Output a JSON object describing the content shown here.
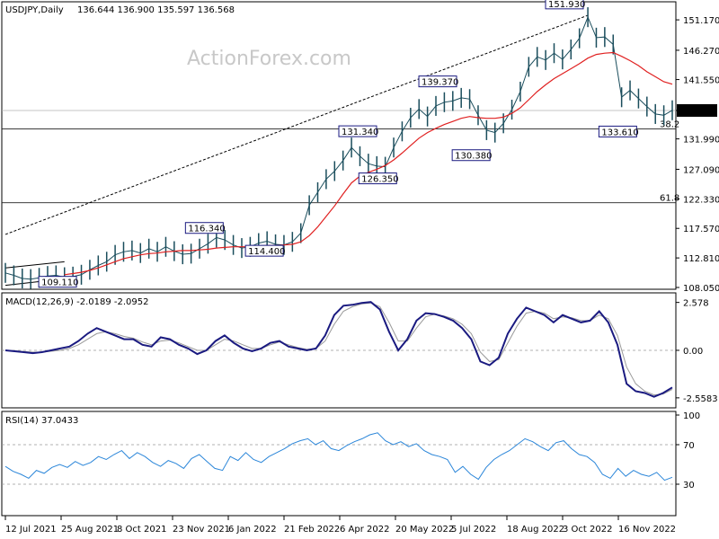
{
  "chart_data": {
    "type": "line",
    "instrument": "USDJPY,Daily",
    "ohlc": "136.644 136.900 135.597 136.568",
    "watermark": "ActionForex.com",
    "x_tick_labels": [
      "12 Jul 2021",
      "25 Aug 2021",
      "8 Oct 2021",
      "23 Nov 2021",
      "6 Jan 2022",
      "21 Feb 2022",
      "6 Apr 2022",
      "20 May 2022",
      "5 Jul 2022",
      "18 Aug 2022",
      "3 Oct 2022",
      "16 Nov 2022"
    ],
    "price_panel": {
      "y_ticks": [
        "151.170",
        "146.270",
        "141.550",
        "136.568",
        "131.990",
        "127.090",
        "122.330",
        "117.570",
        "112.810",
        "108.050"
      ],
      "ylim": [
        108.05,
        153.5
      ],
      "last_price": "136.568",
      "horizontal_levels": [
        136.568,
        133.61,
        121.7
      ],
      "fib_labels": [
        {
          "text": "38.2",
          "price": 133.61
        },
        {
          "text": "61.8",
          "price": 121.7
        }
      ],
      "annotations": [
        {
          "text": "109.110",
          "price": 109.11
        },
        {
          "text": "116.340",
          "price": 116.34
        },
        {
          "text": "114.400",
          "price": 114.4
        },
        {
          "text": "131.340",
          "price": 131.34
        },
        {
          "text": "126.350",
          "price": 126.35
        },
        {
          "text": "139.370",
          "price": 139.37
        },
        {
          "text": "130.380",
          "price": 130.38
        },
        {
          "text": "151.930",
          "price": 151.93
        },
        {
          "text": "133.610",
          "price": 133.61
        }
      ],
      "series": [
        {
          "name": "price",
          "color": "#1a4d5c",
          "values": [
            110.4,
            110.0,
            109.5,
            109.4,
            109.6,
            109.9,
            110.0,
            109.7,
            109.8,
            110.1,
            110.9,
            111.6,
            112.2,
            113.3,
            113.8,
            114.0,
            113.6,
            114.3,
            113.8,
            114.6,
            113.9,
            113.4,
            113.5,
            114.3,
            115.1,
            116.1,
            115.7,
            114.9,
            114.4,
            114.6,
            115.2,
            115.5,
            115.0,
            114.9,
            115.4,
            116.8,
            121.3,
            123.4,
            125.5,
            126.8,
            128.5,
            130.6,
            129.2,
            128.0,
            127.6,
            127.5,
            130.6,
            133.2,
            135.4,
            136.8,
            135.6,
            137.3,
            137.9,
            138.1,
            138.6,
            138.4,
            135.8,
            133.4,
            133.0,
            134.5,
            136.7,
            139.6,
            143.6,
            145.2,
            144.7,
            145.8,
            144.8,
            146.4,
            148.2,
            151.6,
            148.3,
            148.4,
            147.2,
            138.7,
            139.8,
            138.5,
            137.2,
            136.0,
            135.8,
            136.6
          ]
        },
        {
          "name": "sma",
          "color": "#e02020",
          "values": [
            null,
            null,
            null,
            null,
            null,
            null,
            null,
            110.1,
            110.3,
            110.5,
            110.8,
            111.2,
            111.7,
            112.2,
            112.7,
            113.0,
            113.3,
            113.5,
            113.6,
            113.8,
            113.9,
            114.0,
            114.0,
            114.1,
            114.2,
            114.4,
            114.5,
            114.6,
            114.6,
            114.6,
            114.7,
            114.8,
            114.8,
            114.9,
            115.0,
            115.4,
            116.4,
            117.8,
            119.5,
            121.2,
            123.1,
            124.9,
            126.0,
            126.6,
            127.1,
            127.7,
            128.6,
            129.7,
            130.9,
            132.1,
            133.0,
            133.7,
            134.3,
            134.8,
            135.3,
            135.6,
            135.4,
            135.3,
            135.3,
            135.5,
            136.1,
            137.0,
            138.3,
            139.6,
            140.7,
            141.7,
            142.5,
            143.3,
            144.1,
            145.0,
            145.6,
            145.8,
            145.9,
            145.3,
            144.6,
            143.8,
            142.8,
            142.0,
            141.2,
            140.8
          ]
        }
      ],
      "trendlines": [
        {
          "style": "dotted",
          "from": [
            0,
            116.6
          ],
          "to": [
            69,
            151.9
          ]
        },
        {
          "style": "solid",
          "from": [
            0,
            111.2
          ],
          "to": [
            7,
            112.2
          ]
        },
        {
          "style": "solid",
          "from": [
            0,
            108.4
          ],
          "to": [
            6,
            109.3
          ]
        }
      ]
    },
    "macd_panel": {
      "label": "MACD(12,26,9) -2.0189 -2.0952",
      "y_ticks": [
        "2.578",
        "0.00",
        "-2.5583"
      ],
      "ylim": [
        -3.0,
        2.9
      ],
      "series": [
        {
          "name": "macd",
          "color": "#1a1a80",
          "values": [
            0.0,
            -0.05,
            -0.1,
            -0.15,
            -0.1,
            0.0,
            0.1,
            0.2,
            0.5,
            0.9,
            1.2,
            1.0,
            0.8,
            0.6,
            0.6,
            0.3,
            0.2,
            0.7,
            0.6,
            0.3,
            0.1,
            -0.2,
            0.0,
            0.5,
            0.8,
            0.4,
            0.1,
            -0.05,
            0.1,
            0.4,
            0.5,
            0.2,
            0.1,
            0.0,
            0.1,
            0.8,
            1.9,
            2.4,
            2.45,
            2.55,
            2.6,
            2.2,
            1.0,
            0.0,
            0.6,
            1.6,
            2.0,
            1.95,
            1.8,
            1.6,
            1.2,
            0.6,
            -0.6,
            -0.8,
            -0.4,
            0.9,
            1.7,
            2.3,
            2.1,
            1.9,
            1.5,
            1.9,
            1.7,
            1.5,
            1.6,
            2.1,
            1.5,
            0.3,
            -1.8,
            -2.2,
            -2.3,
            -2.5,
            -2.3,
            -2.0
          ]
        },
        {
          "name": "signal",
          "color": "#999999",
          "values": [
            0.0,
            -0.02,
            -0.06,
            -0.1,
            -0.1,
            -0.05,
            0.0,
            0.1,
            0.3,
            0.6,
            0.9,
            1.0,
            0.9,
            0.75,
            0.65,
            0.45,
            0.3,
            0.5,
            0.55,
            0.4,
            0.2,
            0.0,
            0.0,
            0.3,
            0.6,
            0.5,
            0.3,
            0.1,
            0.1,
            0.3,
            0.45,
            0.3,
            0.15,
            0.05,
            0.1,
            0.5,
            1.4,
            2.1,
            2.35,
            2.5,
            2.55,
            2.35,
            1.5,
            0.5,
            0.5,
            1.2,
            1.8,
            1.95,
            1.85,
            1.7,
            1.4,
            0.9,
            -0.1,
            -0.6,
            -0.5,
            0.4,
            1.3,
            2.0,
            2.1,
            2.0,
            1.7,
            1.8,
            1.75,
            1.6,
            1.6,
            1.9,
            1.7,
            0.8,
            -0.9,
            -1.8,
            -2.2,
            -2.4,
            -2.35,
            -2.1
          ]
        }
      ]
    },
    "rsi_panel": {
      "label": "RSI(14) 37.0433",
      "y_ticks": [
        "100",
        "70",
        "30"
      ],
      "ylim": [
        0,
        100
      ],
      "levels": [
        70,
        30
      ],
      "series": [
        {
          "name": "rsi",
          "color": "#2b86d9",
          "values": [
            48,
            43,
            40,
            36,
            44,
            41,
            47,
            50,
            47,
            53,
            49,
            52,
            58,
            55,
            60,
            64,
            56,
            62,
            58,
            52,
            48,
            54,
            51,
            46,
            56,
            60,
            53,
            46,
            44,
            58,
            54,
            62,
            55,
            52,
            58,
            62,
            66,
            71,
            74,
            76,
            70,
            74,
            66,
            64,
            69,
            73,
            76,
            80,
            82,
            74,
            70,
            73,
            68,
            71,
            64,
            60,
            58,
            55,
            42,
            48,
            40,
            35,
            47,
            55,
            60,
            64,
            70,
            76,
            73,
            68,
            64,
            72,
            74,
            66,
            60,
            58,
            52,
            40,
            36,
            46,
            38,
            44,
            40,
            38,
            42,
            34,
            37
          ]
        }
      ]
    }
  }
}
